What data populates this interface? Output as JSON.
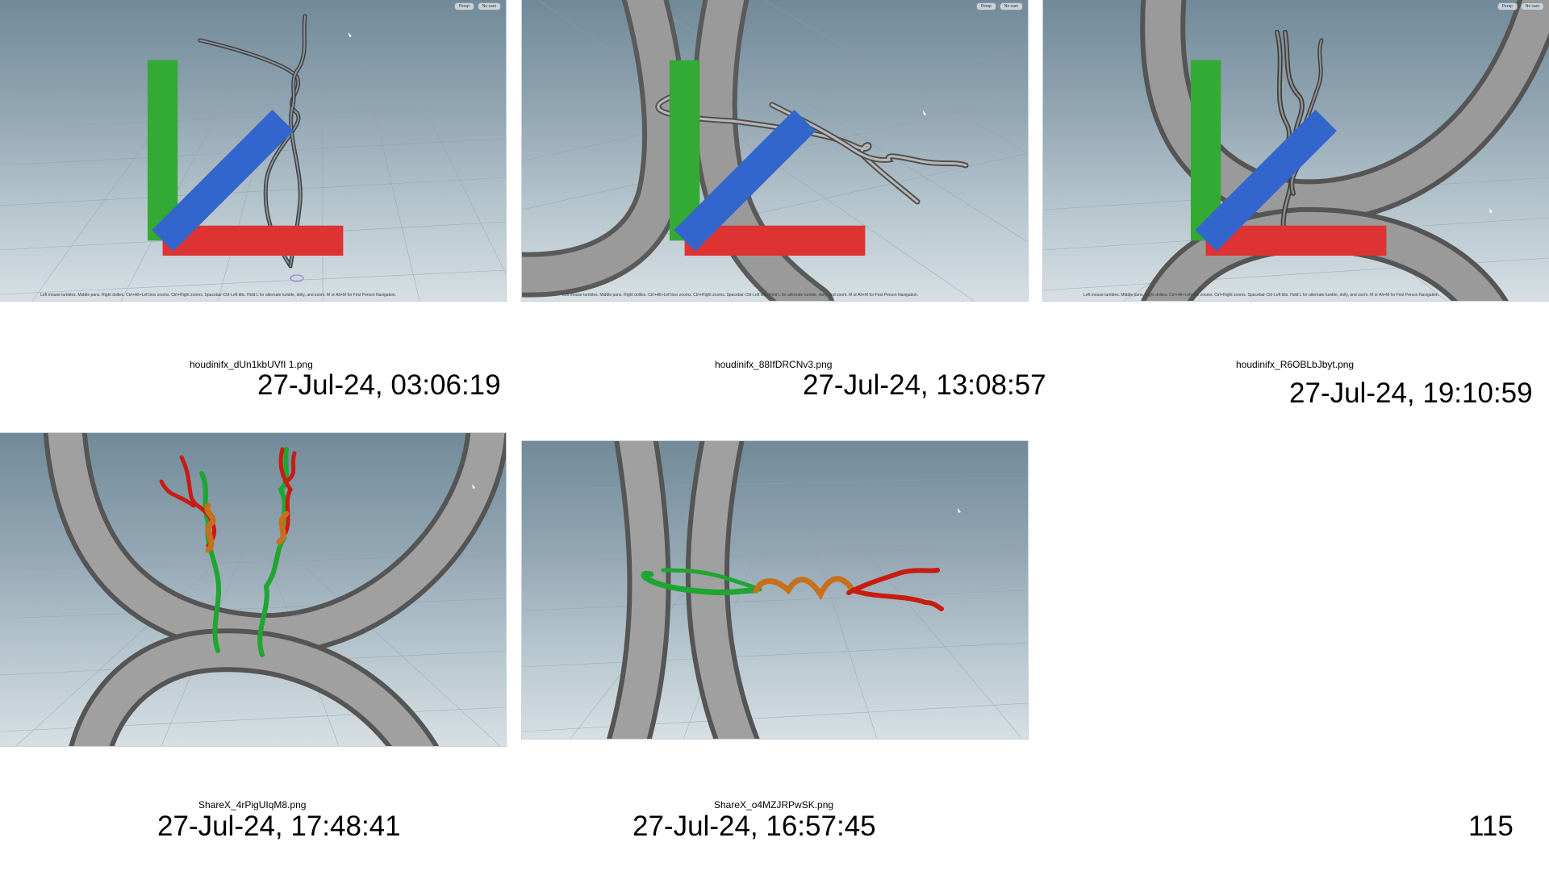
{
  "cards": [
    {
      "filename": "houdinifx_dUn1kbUVfI 1.png",
      "timestamp": "27-Jul-24, 03:06:19",
      "viewport": {
        "btn1": "Persp",
        "btn2": "No cam",
        "status": "Left mouse tumbles. Middle pans. Right dollies. Ctrl+Alt+Left box zooms. Ctrl+Right zooms. Spacebar-Ctrl-Left tilts. Hold L for alternate tumble, dolly, and zoom.    M or Alt+M for First Person Navigation."
      }
    },
    {
      "filename": "houdinifx_88IfDRCNv3.png",
      "timestamp": "27-Jul-24, 13:08:57",
      "viewport": {
        "btn1": "Persp",
        "btn2": "No cam",
        "status": "Left mouse tumbles. Middle pans. Right dollies. Ctrl+Alt+Left box zooms. Ctrl+Right zooms. Spacebar-Ctrl-Left tilts. Hold L for alternate tumble, dolly, and zoom.    M or Alt+M for First Person Navigation."
      }
    },
    {
      "filename": "houdinifx_R6OBLbJbyt.png",
      "timestamp": "27-Jul-24, 19:10:59",
      "viewport": {
        "btn1": "Persp",
        "btn2": "No cam",
        "status": "Left mouse tumbles. Middle pans. Right dollies. Ctrl+Alt+Left box zooms. Ctrl+Right zooms. Spacebar-Ctrl-Left tilts. Hold L for alternate tumble, dolly, and zoom.    M or Alt+M for First Person Navigation."
      }
    },
    {
      "filename": "ShareX_4rPigUIqM8.png",
      "timestamp": "27-Jul-24, 17:48:41"
    },
    {
      "filename": "ShareX_o4MZJRPwSK.png",
      "timestamp": "27-Jul-24, 16:57:45"
    }
  ],
  "page_number": "115",
  "colors": {
    "viewport_sky_top": "#718a99",
    "viewport_floor": "#d6dfe4",
    "tube_gray": "#8e8e8e",
    "strand_green": "#1fa531",
    "strand_red": "#c81c12",
    "strand_orange": "#c76f1b"
  }
}
